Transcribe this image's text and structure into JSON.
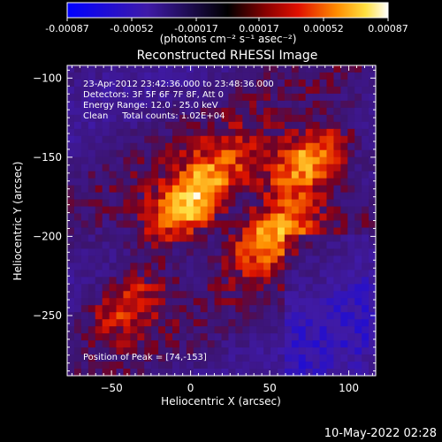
{
  "colorbar": {
    "tick_labels": [
      "-0.00087",
      "-0.00052",
      "-0.00017",
      "0.00017",
      "0.00052",
      "0.00087"
    ],
    "unit_label": "(photons cm⁻² s⁻¹ asec⁻²)",
    "range": [
      -0.00087,
      0.00087
    ]
  },
  "chart_data": {
    "type": "heatmap",
    "title": "Reconstructed RHESSI Image",
    "xlabel": "Heliocentric X (arcsec)",
    "ylabel": "Heliocentric Y (arcsec)",
    "xlim": [
      -78,
      117
    ],
    "ylim": [
      -288,
      -92
    ],
    "x_ticks": [
      -50,
      0,
      50,
      100
    ],
    "y_ticks": [
      -100,
      -150,
      -200,
      -250
    ],
    "x_tick_labels": [
      "−50",
      "0",
      "50",
      "100"
    ],
    "y_tick_labels": [
      "−100",
      "−150",
      "−200",
      "−250"
    ],
    "annotations": [
      "23-Apr-2012 23:42:36.000 to 23:48:36.000",
      "Detectors: 3F 5F 6F 7F 8F, Att 0",
      "Energy Range: 12.0 - 25.0 keV",
      "Clean     Total counts: 1.02E+04"
    ],
    "peak_label": "Position of Peak = [74,-153]",
    "peak": [
      74,
      -153
    ],
    "sources": [
      {
        "x": 74,
        "y": -153,
        "amp": 1.0
      },
      {
        "x": -3,
        "y": -183,
        "amp": 0.98
      },
      {
        "x": 52,
        "y": -198,
        "amp": 0.85
      },
      {
        "x": -40,
        "y": -240,
        "amp": 0.6
      },
      {
        "x": 20,
        "y": -155,
        "amp": 0.45
      }
    ]
  },
  "footer": {
    "date": "10-May-2022 02:28"
  }
}
